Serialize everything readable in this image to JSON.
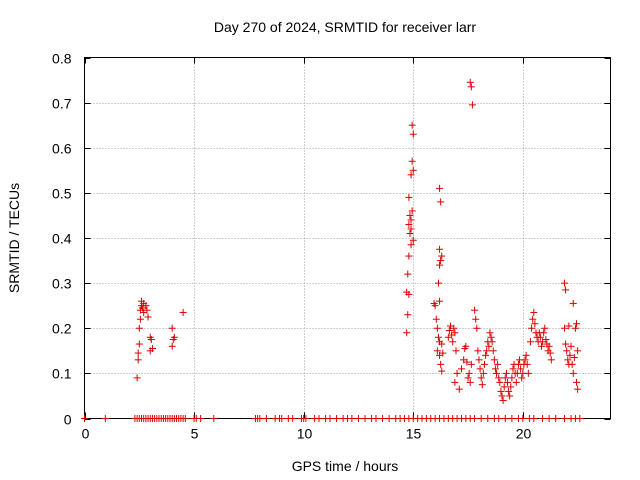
{
  "chart_data": {
    "type": "scatter",
    "title": "Day 270 of 2024, SRMTID for receiver larr",
    "xlabel": "GPS time / hours",
    "ylabel": "SRMTID / TECUs",
    "xlim": [
      0,
      24
    ],
    "ylim": [
      0,
      0.8
    ],
    "xticks": [
      "0",
      "5",
      "10",
      "15",
      "20"
    ],
    "xtick_values": [
      0,
      5,
      10,
      15,
      20
    ],
    "yticks": [
      "0",
      "0.1",
      "0.2",
      "0.3",
      "0.4",
      "0.5",
      "0.6",
      "0.7",
      "0.8"
    ],
    "ytick_values": [
      0,
      0.1,
      0.2,
      0.3,
      0.4,
      0.5,
      0.6,
      0.7,
      0.8
    ],
    "grid": true,
    "marker": "+",
    "color": "#dd0000",
    "series": [
      {
        "name": "SRMTID",
        "points": [
          [
            0.0,
            0
          ],
          [
            0.95,
            0
          ],
          [
            2.3,
            0
          ],
          [
            2.4,
            0
          ],
          [
            2.5,
            0
          ],
          [
            2.6,
            0
          ],
          [
            2.7,
            0
          ],
          [
            2.8,
            0
          ],
          [
            2.9,
            0
          ],
          [
            3.0,
            0
          ],
          [
            3.1,
            0
          ],
          [
            3.2,
            0
          ],
          [
            3.3,
            0
          ],
          [
            3.4,
            0
          ],
          [
            3.5,
            0
          ],
          [
            3.6,
            0
          ],
          [
            3.7,
            0
          ],
          [
            3.8,
            0
          ],
          [
            3.9,
            0
          ],
          [
            4.0,
            0
          ],
          [
            4.1,
            0
          ],
          [
            4.2,
            0
          ],
          [
            4.3,
            0
          ],
          [
            4.4,
            0
          ],
          [
            4.5,
            0
          ],
          [
            4.6,
            0
          ],
          [
            5.0,
            0
          ],
          [
            5.1,
            0
          ],
          [
            5.3,
            0
          ],
          [
            5.9,
            0
          ],
          [
            7.8,
            0
          ],
          [
            7.9,
            0
          ],
          [
            8.0,
            0
          ],
          [
            8.3,
            0
          ],
          [
            8.7,
            0
          ],
          [
            8.9,
            0
          ],
          [
            9.0,
            0
          ],
          [
            9.3,
            0
          ],
          [
            9.5,
            0
          ],
          [
            9.9,
            0
          ],
          [
            10.0,
            0
          ],
          [
            10.1,
            0
          ],
          [
            10.5,
            0
          ],
          [
            10.7,
            0
          ],
          [
            11.0,
            0
          ],
          [
            11.2,
            0
          ],
          [
            11.5,
            0
          ],
          [
            11.8,
            0
          ],
          [
            12.0,
            0
          ],
          [
            12.2,
            0
          ],
          [
            12.5,
            0
          ],
          [
            12.8,
            0
          ],
          [
            13.1,
            0
          ],
          [
            13.3,
            0
          ],
          [
            13.6,
            0
          ],
          [
            13.9,
            0
          ],
          [
            14.2,
            0
          ],
          [
            14.4,
            0
          ],
          [
            14.6,
            0
          ],
          [
            14.8,
            0
          ],
          [
            15.0,
            0
          ],
          [
            15.2,
            0
          ],
          [
            15.4,
            0
          ],
          [
            15.6,
            0
          ],
          [
            15.8,
            0
          ],
          [
            16.0,
            0
          ],
          [
            16.2,
            0
          ],
          [
            16.4,
            0
          ],
          [
            16.6,
            0
          ],
          [
            16.8,
            0
          ],
          [
            17.0,
            0
          ],
          [
            17.2,
            0
          ],
          [
            17.4,
            0
          ],
          [
            17.6,
            0
          ],
          [
            17.8,
            0
          ],
          [
            18.1,
            0
          ],
          [
            18.4,
            0
          ],
          [
            18.7,
            0
          ],
          [
            18.9,
            0
          ],
          [
            19.2,
            0
          ],
          [
            19.5,
            0
          ],
          [
            19.8,
            0
          ],
          [
            20.0,
            0
          ],
          [
            20.3,
            0
          ],
          [
            20.5,
            0
          ],
          [
            20.9,
            0
          ],
          [
            21.2,
            0
          ],
          [
            21.5,
            0
          ],
          [
            21.9,
            0
          ],
          [
            22.2,
            0
          ],
          [
            22.4,
            0
          ],
          [
            22.6,
            0
          ],
          [
            2.4,
            0.09
          ],
          [
            2.45,
            0.13
          ],
          [
            2.45,
            0.145
          ],
          [
            2.5,
            0.165
          ],
          [
            2.5,
            0.2
          ],
          [
            2.55,
            0.22
          ],
          [
            2.55,
            0.24
          ],
          [
            2.6,
            0.25
          ],
          [
            2.6,
            0.26
          ],
          [
            2.65,
            0.245
          ],
          [
            2.7,
            0.255
          ],
          [
            2.7,
            0.235
          ],
          [
            2.8,
            0.25
          ],
          [
            2.85,
            0.24
          ],
          [
            2.9,
            0.225
          ],
          [
            3.0,
            0.18
          ],
          [
            3.05,
            0.175
          ],
          [
            3.0,
            0.15
          ],
          [
            3.1,
            0.155
          ],
          [
            4.0,
            0.16
          ],
          [
            4.05,
            0.175
          ],
          [
            4.0,
            0.2
          ],
          [
            4.1,
            0.18
          ],
          [
            4.5,
            0.235
          ],
          [
            14.7,
            0.19
          ],
          [
            14.75,
            0.23
          ],
          [
            14.7,
            0.28
          ],
          [
            14.8,
            0.275
          ],
          [
            14.75,
            0.32
          ],
          [
            14.8,
            0.36
          ],
          [
            14.85,
            0.41
          ],
          [
            14.8,
            0.43
          ],
          [
            14.9,
            0.44
          ],
          [
            14.85,
            0.45
          ],
          [
            14.9,
            0.42
          ],
          [
            14.95,
            0.46
          ],
          [
            14.8,
            0.49
          ],
          [
            14.9,
            0.54
          ],
          [
            15.0,
            0.55
          ],
          [
            14.95,
            0.57
          ],
          [
            15.0,
            0.63
          ],
          [
            14.95,
            0.65
          ],
          [
            15.0,
            0.395
          ],
          [
            14.9,
            0.385
          ],
          [
            15.95,
            0.255
          ],
          [
            16.0,
            0.25
          ],
          [
            16.05,
            0.22
          ],
          [
            16.1,
            0.2
          ],
          [
            16.15,
            0.18
          ],
          [
            16.2,
            0.17
          ],
          [
            16.1,
            0.15
          ],
          [
            16.2,
            0.14
          ],
          [
            16.25,
            0.12
          ],
          [
            16.3,
            0.105
          ],
          [
            16.2,
            0.26
          ],
          [
            16.15,
            0.3
          ],
          [
            16.2,
            0.34
          ],
          [
            16.25,
            0.35
          ],
          [
            16.3,
            0.36
          ],
          [
            16.2,
            0.375
          ],
          [
            16.25,
            0.48
          ],
          [
            16.2,
            0.51
          ],
          [
            16.3,
            0.165
          ],
          [
            16.35,
            0.145
          ],
          [
            16.6,
            0.18
          ],
          [
            16.65,
            0.195
          ],
          [
            16.7,
            0.205
          ],
          [
            16.75,
            0.185
          ],
          [
            16.8,
            0.17
          ],
          [
            16.85,
            0.2
          ],
          [
            16.9,
            0.19
          ],
          [
            16.95,
            0.15
          ],
          [
            17.0,
            0.1
          ],
          [
            16.9,
            0.08
          ],
          [
            17.1,
            0.065
          ],
          [
            17.2,
            0.11
          ],
          [
            17.3,
            0.13
          ],
          [
            17.35,
            0.155
          ],
          [
            17.4,
            0.16
          ],
          [
            17.45,
            0.125
          ],
          [
            17.5,
            0.09
          ],
          [
            17.55,
            0.1
          ],
          [
            17.6,
            0.08
          ],
          [
            17.65,
            0.12
          ],
          [
            17.6,
            0.745
          ],
          [
            17.65,
            0.735
          ],
          [
            17.7,
            0.695
          ],
          [
            17.8,
            0.24
          ],
          [
            17.85,
            0.22
          ],
          [
            17.9,
            0.2
          ],
          [
            17.95,
            0.15
          ],
          [
            18.0,
            0.13
          ],
          [
            18.05,
            0.11
          ],
          [
            18.1,
            0.09
          ],
          [
            18.15,
            0.075
          ],
          [
            18.2,
            0.1
          ],
          [
            18.25,
            0.12
          ],
          [
            18.3,
            0.14
          ],
          [
            18.35,
            0.15
          ],
          [
            18.4,
            0.17
          ],
          [
            18.45,
            0.16
          ],
          [
            18.5,
            0.19
          ],
          [
            18.55,
            0.18
          ],
          [
            18.6,
            0.17
          ],
          [
            18.65,
            0.15
          ],
          [
            18.7,
            0.13
          ],
          [
            18.75,
            0.11
          ],
          [
            18.8,
            0.1
          ],
          [
            18.85,
            0.12
          ],
          [
            18.9,
            0.09
          ],
          [
            18.95,
            0.08
          ],
          [
            19.0,
            0.06
          ],
          [
            19.05,
            0.05
          ],
          [
            19.1,
            0.04
          ],
          [
            19.15,
            0.07
          ],
          [
            19.2,
            0.09
          ],
          [
            19.25,
            0.1
          ],
          [
            19.3,
            0.08
          ],
          [
            19.35,
            0.06
          ],
          [
            19.4,
            0.05
          ],
          [
            19.45,
            0.07
          ],
          [
            19.5,
            0.09
          ],
          [
            19.55,
            0.11
          ],
          [
            19.6,
            0.12
          ],
          [
            19.65,
            0.1
          ],
          [
            19.7,
            0.08
          ],
          [
            19.75,
            0.1
          ],
          [
            19.8,
            0.12
          ],
          [
            19.85,
            0.13
          ],
          [
            19.9,
            0.11
          ],
          [
            19.95,
            0.09
          ],
          [
            20.0,
            0.1
          ],
          [
            20.05,
            0.12
          ],
          [
            20.1,
            0.13
          ],
          [
            20.15,
            0.14
          ],
          [
            20.2,
            0.12
          ],
          [
            20.25,
            0.1
          ],
          [
            20.35,
            0.17
          ],
          [
            20.4,
            0.2
          ],
          [
            20.45,
            0.22
          ],
          [
            20.5,
            0.235
          ],
          [
            20.55,
            0.21
          ],
          [
            20.6,
            0.19
          ],
          [
            20.65,
            0.18
          ],
          [
            20.7,
            0.17
          ],
          [
            20.75,
            0.19
          ],
          [
            20.8,
            0.18
          ],
          [
            20.85,
            0.16
          ],
          [
            20.9,
            0.17
          ],
          [
            20.95,
            0.19
          ],
          [
            21.0,
            0.2
          ],
          [
            21.05,
            0.175
          ],
          [
            21.1,
            0.165
          ],
          [
            21.15,
            0.15
          ],
          [
            21.2,
            0.16
          ],
          [
            21.25,
            0.145
          ],
          [
            21.3,
            0.13
          ],
          [
            21.9,
            0.3
          ],
          [
            21.95,
            0.285
          ],
          [
            21.9,
            0.2
          ],
          [
            21.95,
            0.165
          ],
          [
            22.0,
            0.15
          ],
          [
            22.05,
            0.13
          ],
          [
            22.1,
            0.12
          ],
          [
            22.15,
            0.14
          ],
          [
            22.2,
            0.16
          ],
          [
            22.25,
            0.12
          ],
          [
            22.3,
            0.1
          ],
          [
            22.35,
            0.135
          ],
          [
            22.4,
            0.2
          ],
          [
            22.45,
            0.21
          ],
          [
            22.5,
            0.15
          ],
          [
            22.45,
            0.08
          ],
          [
            22.5,
            0.065
          ],
          [
            22.3,
            0.255
          ],
          [
            22.1,
            0.205
          ]
        ]
      }
    ]
  }
}
